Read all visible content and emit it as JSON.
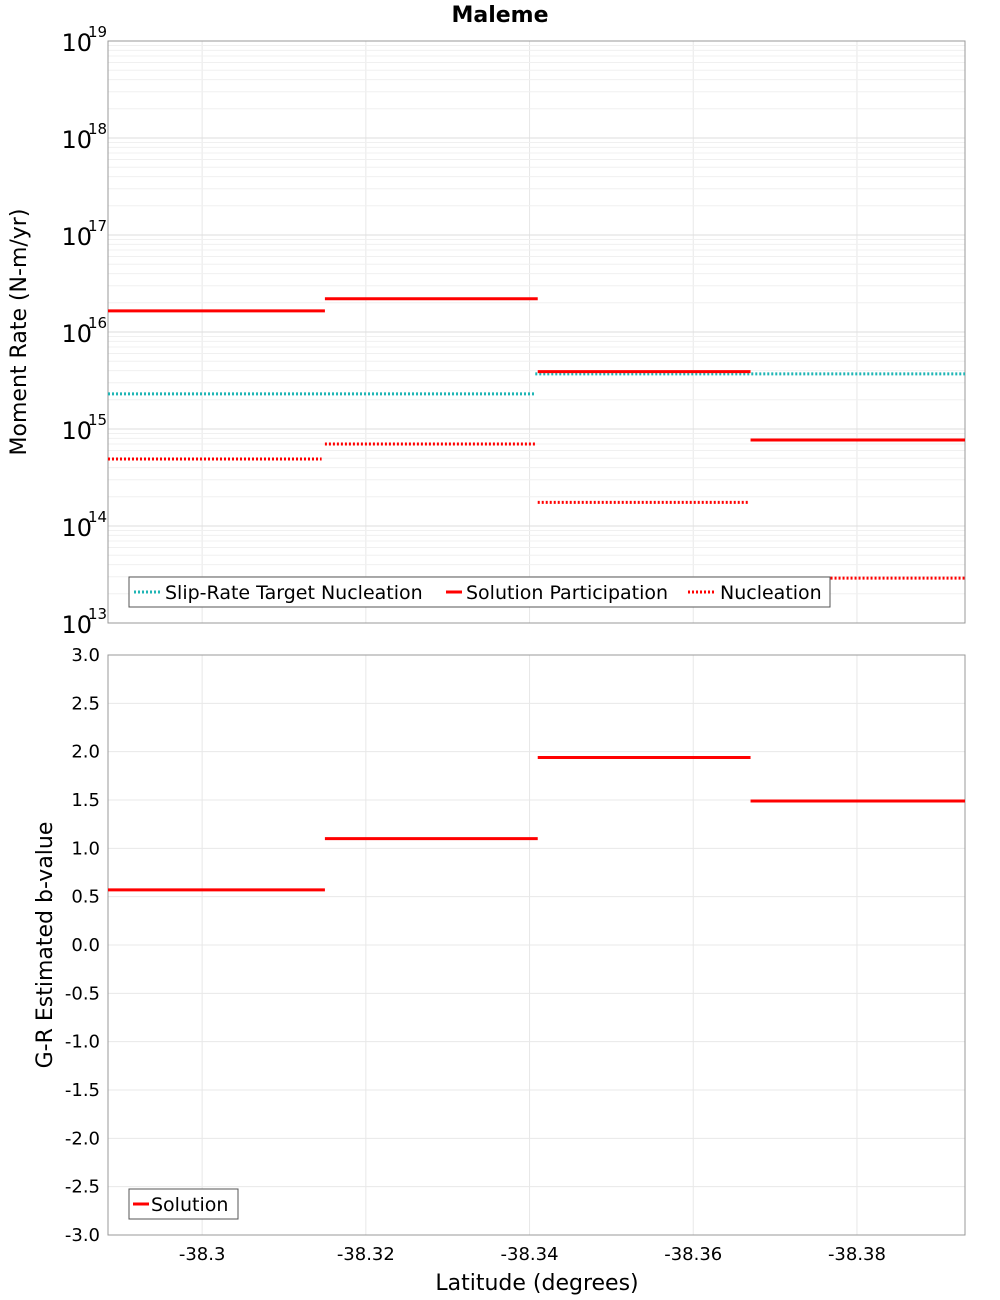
{
  "chart_data": [
    {
      "type": "line",
      "title": "Maleme",
      "xlabel": "",
      "ylabel": "Moment Rate (N-m/yr)",
      "yscale": "log",
      "xlim": [
        -38.2885,
        -38.3932
      ],
      "ylim": [
        10000000000000.0,
        1e+19
      ],
      "y_ticks": [
        {
          "base": "10",
          "exp": "19"
        },
        {
          "base": "10",
          "exp": "18"
        },
        {
          "base": "10",
          "exp": "17"
        },
        {
          "base": "10",
          "exp": "16"
        },
        {
          "base": "10",
          "exp": "15"
        },
        {
          "base": "10",
          "exp": "14"
        },
        {
          "base": "10",
          "exp": "13"
        }
      ],
      "y_tick_values": [
        1e+19,
        1e+18,
        1e+17,
        1e+16,
        1000000000000000.0,
        100000000000000.0,
        10000000000000.0
      ],
      "grid": true,
      "legend_position": "bottom-left",
      "series": [
        {
          "name": "Slip-Rate Target Nucleation",
          "style": "dotted",
          "color": "#1fb5b5",
          "segments": [
            {
              "x0": -38.2885,
              "x1": -38.3407,
              "y": 2300000000000000.0
            },
            {
              "x0": -38.3407,
              "x1": -38.3932,
              "y": 3700000000000000.0
            }
          ]
        },
        {
          "name": "Solution Participation",
          "style": "solid",
          "color": "#ff0000",
          "segments": [
            {
              "x0": -38.2885,
              "x1": -38.315,
              "y": 1.65e+16
            },
            {
              "x0": -38.315,
              "x1": -38.341,
              "y": 2.2e+16
            },
            {
              "x0": -38.341,
              "x1": -38.367,
              "y": 3900000000000000.0
            },
            {
              "x0": -38.367,
              "x1": -38.3932,
              "y": 770000000000000.0
            }
          ]
        },
        {
          "name": "Nucleation",
          "style": "dotted",
          "color": "#ff0000",
          "segments": [
            {
              "x0": -38.2885,
              "x1": -38.3146,
              "y": 490000000000000.0
            },
            {
              "x0": -38.315,
              "x1": -38.3407,
              "y": 700000000000000.0
            },
            {
              "x0": -38.341,
              "x1": -38.3667,
              "y": 175000000000000.0
            },
            {
              "x0": -38.367,
              "x1": -38.3932,
              "y": 29000000000000.0
            }
          ]
        }
      ]
    },
    {
      "type": "line",
      "title": "",
      "xlabel": "Latitude (degrees)",
      "ylabel": "G-R Estimated b-value",
      "xlim": [
        -38.2885,
        -38.3932
      ],
      "ylim": [
        -3.0,
        3.0
      ],
      "x_ticks": [
        "-38.3",
        "-38.32",
        "-38.34",
        "-38.36",
        "-38.38"
      ],
      "x_tick_values": [
        -38.3,
        -38.32,
        -38.34,
        -38.36,
        -38.38
      ],
      "y_ticks": [
        "3.0",
        "2.5",
        "2.0",
        "1.5",
        "1.0",
        "0.5",
        "0.0",
        "-0.5",
        "-1.0",
        "-1.5",
        "-2.0",
        "-2.5",
        "-3.0"
      ],
      "y_tick_values": [
        3.0,
        2.5,
        2.0,
        1.5,
        1.0,
        0.5,
        0.0,
        -0.5,
        -1.0,
        -1.5,
        -2.0,
        -2.5,
        -3.0
      ],
      "grid": true,
      "legend_position": "bottom-left",
      "series": [
        {
          "name": "Solution",
          "style": "solid",
          "color": "#ff0000",
          "segments": [
            {
              "x0": -38.2885,
              "x1": -38.315,
              "y": 0.57
            },
            {
              "x0": -38.315,
              "x1": -38.341,
              "y": 1.1
            },
            {
              "x0": -38.341,
              "x1": -38.367,
              "y": 1.94
            },
            {
              "x0": -38.367,
              "x1": -38.3932,
              "y": 1.49
            }
          ]
        }
      ]
    }
  ]
}
